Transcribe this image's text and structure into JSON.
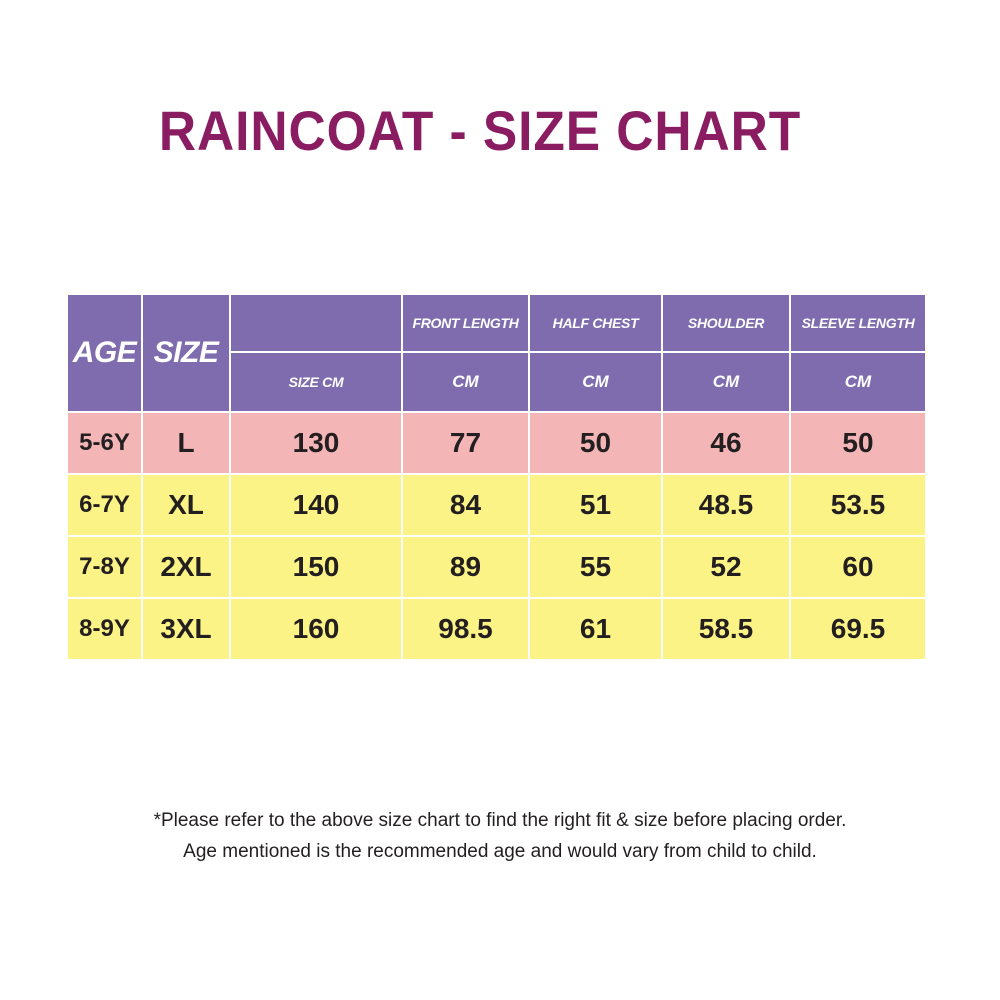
{
  "title": "RAINCOAT - SIZE CHART",
  "colors": {
    "title": "#8a1c62",
    "header_bg": "#7f6cae",
    "first_row_bg": "#f4b5b7",
    "other_rows_bg": "#fbf386"
  },
  "header": {
    "age": "AGE",
    "size": "SIZE",
    "columns": [
      {
        "top": "",
        "bottom": "SIZE CM"
      },
      {
        "top": "FRONT LENGTH",
        "bottom": "CM"
      },
      {
        "top": "HALF CHEST",
        "bottom": "CM"
      },
      {
        "top": "SHOULDER",
        "bottom": "CM"
      },
      {
        "top": "SLEEVE LENGTH",
        "bottom": "CM"
      }
    ]
  },
  "rows": [
    [
      "5-6Y",
      "L",
      "130",
      "77",
      "50",
      "46",
      "50"
    ],
    [
      "6-7Y",
      "XL",
      "140",
      "84",
      "51",
      "48.5",
      "53.5"
    ],
    [
      "7-8Y",
      "2XL",
      "150",
      "89",
      "55",
      "52",
      "60"
    ],
    [
      "8-9Y",
      "3XL",
      "160",
      "98.5",
      "61",
      "58.5",
      "69.5"
    ]
  ],
  "notes": [
    "*Please refer to the above size chart to find the right fit & size before placing order.",
    "Age mentioned is the recommended age and would vary from child to child."
  ]
}
